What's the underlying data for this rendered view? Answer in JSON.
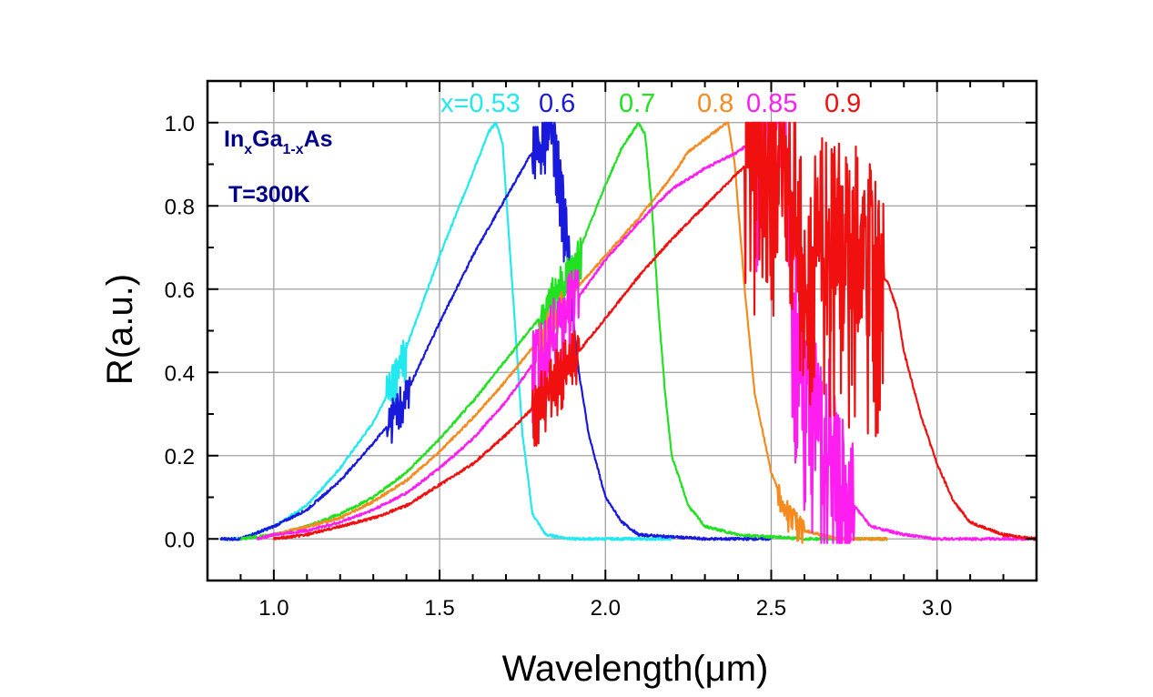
{
  "chart_data": {
    "type": "line",
    "title": "",
    "xlabel": "Wavelength(μm)",
    "ylabel": "R(a.u.)",
    "xlim": [
      0.8,
      3.3
    ],
    "ylim": [
      -0.1,
      1.1
    ],
    "xticks": [
      1.0,
      1.5,
      2.0,
      2.5,
      3.0
    ],
    "xtick_labels": [
      "1.0",
      "1.5",
      "2.0",
      "2.5",
      "3.0"
    ],
    "yticks": [
      0.0,
      0.2,
      0.4,
      0.6,
      0.8,
      1.0
    ],
    "ytick_labels": [
      "0.0",
      "0.2",
      "0.4",
      "0.6",
      "0.8",
      "1.0"
    ],
    "grid": true,
    "annotations": {
      "material": {
        "base1": "In",
        "sub1": "x",
        "base2": "Ga",
        "sub2": "1-x",
        "base3": "As"
      },
      "temperature": "T=300K"
    },
    "series": [
      {
        "name": "x=0.53",
        "label": "x=0.53",
        "color": "#22e8f0",
        "x": [
          0.84,
          0.9,
          1.0,
          1.1,
          1.2,
          1.3,
          1.35,
          1.4,
          1.45,
          1.5,
          1.55,
          1.6,
          1.65,
          1.67,
          1.69,
          1.72,
          1.75,
          1.78,
          1.82,
          1.9,
          2.0,
          2.2
        ],
        "y": [
          0.0,
          0.0,
          0.03,
          0.08,
          0.17,
          0.28,
          0.36,
          0.46,
          0.57,
          0.68,
          0.78,
          0.88,
          0.98,
          1.0,
          0.95,
          0.6,
          0.25,
          0.06,
          0.01,
          0.0,
          0.0,
          0.0
        ],
        "noise_regions": [
          [
            1.34,
            1.4,
            0.06
          ]
        ]
      },
      {
        "name": "x=0.6",
        "label": "0.6",
        "color": "#1a1adc",
        "x": [
          0.84,
          0.9,
          1.0,
          1.1,
          1.2,
          1.3,
          1.35,
          1.4,
          1.5,
          1.6,
          1.7,
          1.78,
          1.82,
          1.85,
          1.88,
          1.9,
          1.92,
          1.95,
          2.0,
          2.05,
          2.1,
          2.3,
          2.5
        ],
        "y": [
          0.0,
          0.0,
          0.03,
          0.07,
          0.14,
          0.23,
          0.28,
          0.35,
          0.52,
          0.68,
          0.82,
          0.93,
          1.0,
          0.95,
          0.75,
          0.55,
          0.4,
          0.25,
          0.1,
          0.04,
          0.01,
          0.0,
          0.0
        ],
        "noise_regions": [
          [
            1.34,
            1.41,
            0.06
          ],
          [
            1.78,
            1.9,
            0.1
          ]
        ]
      },
      {
        "name": "x=0.7",
        "label": "0.7",
        "color": "#22e022",
        "x": [
          0.9,
          1.0,
          1.1,
          1.2,
          1.3,
          1.4,
          1.5,
          1.6,
          1.7,
          1.8,
          1.9,
          1.95,
          2.0,
          2.05,
          2.1,
          2.12,
          2.14,
          2.16,
          2.18,
          2.2,
          2.25,
          2.3,
          2.4,
          2.6,
          2.85
        ],
        "y": [
          0.0,
          0.01,
          0.03,
          0.06,
          0.1,
          0.16,
          0.24,
          0.33,
          0.43,
          0.53,
          0.65,
          0.75,
          0.85,
          0.94,
          1.0,
          0.97,
          0.8,
          0.55,
          0.35,
          0.2,
          0.08,
          0.03,
          0.01,
          0.0,
          0.0
        ],
        "noise_regions": [
          [
            1.8,
            1.93,
            0.07
          ]
        ]
      },
      {
        "name": "x=0.8",
        "label": "0.8",
        "color": "#f58a1f",
        "x": [
          0.95,
          1.0,
          1.1,
          1.2,
          1.3,
          1.4,
          1.5,
          1.6,
          1.7,
          1.8,
          1.9,
          2.0,
          2.1,
          2.2,
          2.25,
          2.3,
          2.35,
          2.37,
          2.39,
          2.42,
          2.45,
          2.5,
          2.55,
          2.6,
          2.7,
          2.85
        ],
        "y": [
          0.0,
          0.01,
          0.03,
          0.05,
          0.09,
          0.14,
          0.21,
          0.29,
          0.38,
          0.48,
          0.59,
          0.68,
          0.77,
          0.87,
          0.93,
          0.96,
          0.99,
          1.0,
          0.9,
          0.6,
          0.35,
          0.16,
          0.06,
          0.02,
          0.0,
          0.0
        ],
        "noise_regions": [
          [
            1.8,
            1.88,
            0.05
          ],
          [
            2.52,
            2.6,
            0.04
          ]
        ]
      },
      {
        "name": "x=0.85",
        "label": "0.85",
        "color": "#ff1ef0",
        "x": [
          0.95,
          1.0,
          1.1,
          1.2,
          1.3,
          1.4,
          1.5,
          1.6,
          1.7,
          1.8,
          1.9,
          2.0,
          2.1,
          2.2,
          2.3,
          2.4,
          2.5,
          2.54,
          2.56,
          2.58,
          2.6,
          2.65,
          2.7,
          2.75,
          2.8,
          2.9,
          3.0,
          3.3
        ],
        "y": [
          0.0,
          0.01,
          0.02,
          0.04,
          0.07,
          0.11,
          0.17,
          0.24,
          0.33,
          0.44,
          0.56,
          0.67,
          0.76,
          0.84,
          0.89,
          0.93,
          0.99,
          0.97,
          0.7,
          0.45,
          0.35,
          0.25,
          0.15,
          0.08,
          0.03,
          0.01,
          0.0,
          0.0
        ],
        "noise_regions": [
          [
            1.78,
            1.92,
            0.12
          ],
          [
            2.45,
            2.75,
            0.3
          ]
        ]
      },
      {
        "name": "x=0.9",
        "label": "0.9",
        "color": "#f01010",
        "x": [
          1.0,
          1.1,
          1.2,
          1.3,
          1.4,
          1.5,
          1.6,
          1.7,
          1.8,
          1.9,
          2.0,
          2.1,
          2.2,
          2.3,
          2.4,
          2.5,
          2.55,
          2.6,
          2.65,
          2.7,
          2.75,
          2.8,
          2.85,
          2.88,
          2.9,
          2.95,
          3.0,
          3.05,
          3.1,
          3.2,
          3.3
        ],
        "y": [
          0.0,
          0.01,
          0.03,
          0.05,
          0.08,
          0.13,
          0.18,
          0.25,
          0.33,
          0.43,
          0.53,
          0.63,
          0.72,
          0.8,
          0.88,
          0.95,
          0.9,
          0.65,
          0.7,
          0.7,
          0.68,
          0.65,
          0.62,
          0.55,
          0.45,
          0.3,
          0.18,
          0.09,
          0.04,
          0.01,
          0.0
        ],
        "noise_regions": [
          [
            1.78,
            1.92,
            0.09
          ],
          [
            2.42,
            2.84,
            0.35
          ]
        ]
      }
    ]
  }
}
